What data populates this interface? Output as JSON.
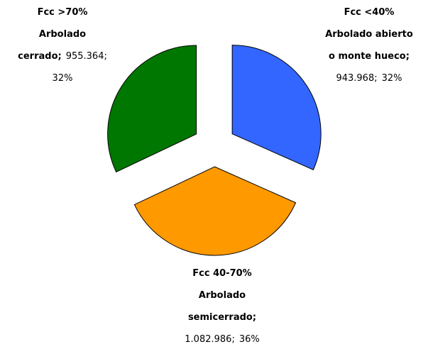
{
  "chart_data": {
    "type": "pie",
    "categories": [
      [
        "Fcc <40%",
        "Arbolado abierto",
        "o monte hueco;"
      ],
      [
        "Fcc 40-70%",
        "Arbolado",
        "semicerrado;"
      ],
      [
        "Fcc >70%",
        "Arbolado",
        "cerrado;"
      ]
    ],
    "values": [
      943968,
      1082986,
      955364
    ],
    "value_labels": [
      "943.968",
      "1.082.986",
      "955.364"
    ],
    "separator": ";",
    "percents": [
      32,
      36,
      32
    ],
    "percent_labels": [
      "32%",
      "36%",
      "32%"
    ],
    "colors": [
      "#3366ff",
      "#ff9900",
      "#007700"
    ],
    "exploded": true
  }
}
